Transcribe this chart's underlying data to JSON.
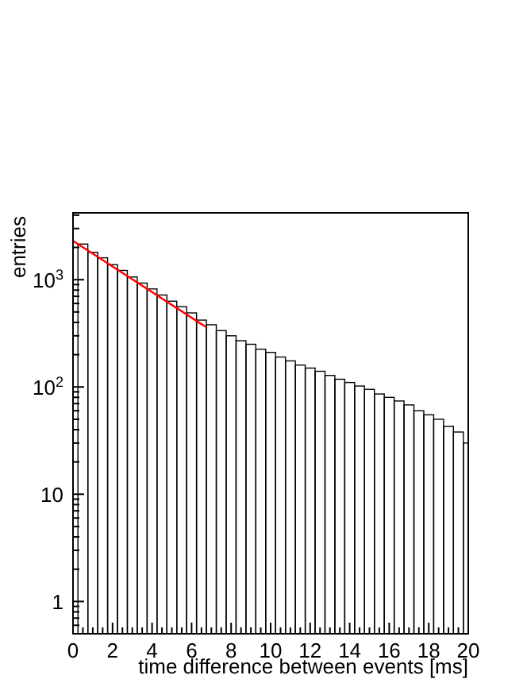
{
  "chart_data": {
    "type": "histogram",
    "xlabel": "time difference between events [ms]",
    "ylabel": "entries",
    "bins": [
      0.25,
      0.75,
      1.25,
      1.75,
      2.25,
      2.75,
      3.25,
      3.75,
      4.25,
      4.75,
      5.25,
      5.75,
      6.25,
      6.75,
      7.25,
      7.75,
      8.25,
      8.75,
      9.25,
      9.75,
      10.25,
      10.75,
      11.25,
      11.75,
      12.25,
      12.75,
      13.25,
      13.75,
      14.25,
      14.75,
      15.25,
      15.75,
      16.25,
      16.75,
      17.25,
      17.75,
      18.25,
      18.75,
      19.25,
      19.75,
      20
    ],
    "values": [
      2150,
      1800,
      1600,
      1380,
      1220,
      1060,
      930,
      820,
      720,
      630,
      560,
      490,
      420,
      380,
      335,
      300,
      270,
      250,
      225,
      210,
      190,
      175,
      160,
      150,
      140,
      128,
      118,
      110,
      102,
      95,
      86,
      80,
      74,
      68,
      60,
      55,
      50,
      43,
      38,
      30
    ],
    "color": "#000000",
    "series": [
      {
        "type": "line",
        "color": "#ff0000",
        "x": [
          0,
          6.75
        ],
        "values": [
          2300,
          360
        ]
      }
    ],
    "log": "y",
    "xlim": [
      0,
      20
    ],
    "ylim": [
      0.5,
      4200
    ],
    "xticks": [
      0,
      2,
      4,
      6,
      8,
      10,
      12,
      14,
      16,
      18,
      20
    ],
    "yticks": [
      1,
      10,
      {
        "value": 100,
        "label": "10$^{2}$"
      },
      {
        "value": 1000,
        "label": "10$^{3}$"
      }
    ]
  }
}
